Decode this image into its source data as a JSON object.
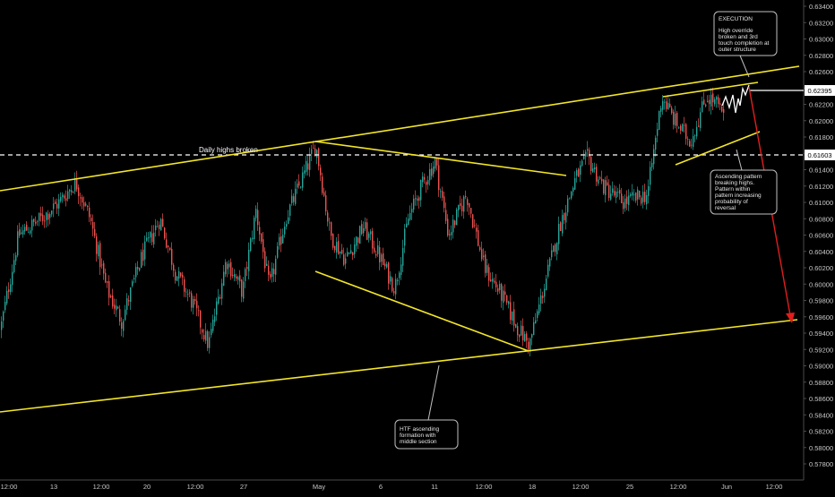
{
  "chart_data": {
    "type": "candlestick",
    "title": "",
    "xlabel": "",
    "ylabel": "",
    "ylim": [
      0.577,
      0.635
    ],
    "y_ticks": [
      "0.63400",
      "0.63200",
      "0.63000",
      "0.62800",
      "0.62600",
      "0.62400",
      "0.62200",
      "0.62000",
      "0.61800",
      "0.61600",
      "0.61400",
      "0.61200",
      "0.61000",
      "0.60800",
      "0.60600",
      "0.60400",
      "0.60200",
      "0.60000",
      "0.59800",
      "0.59600",
      "0.59400",
      "0.59200",
      "0.59000",
      "0.58800",
      "0.58600",
      "0.58400",
      "0.58200",
      "0.58000",
      "0.57800"
    ],
    "x_ticks": [
      "12:00",
      "13",
      "12:00",
      "20",
      "12:00",
      "27",
      "May",
      "6",
      "11",
      "12:00",
      "18",
      "12:00",
      "25",
      "12:00",
      "Jun",
      "12:00"
    ],
    "price_labels": {
      "upper": "0.62395",
      "lower": "0.61603"
    },
    "series_points": [
      [
        0,
        0.5945
      ],
      [
        20,
        0.606
      ],
      [
        45,
        0.608
      ],
      [
        65,
        0.61
      ],
      [
        84,
        0.6125
      ],
      [
        100,
        0.608
      ],
      [
        118,
        0.5995
      ],
      [
        135,
        0.5955
      ],
      [
        158,
        0.6035
      ],
      [
        178,
        0.608
      ],
      [
        195,
        0.6015
      ],
      [
        215,
        0.5975
      ],
      [
        232,
        0.5925
      ],
      [
        252,
        0.603
      ],
      [
        270,
        0.599
      ],
      [
        285,
        0.609
      ],
      [
        300,
        0.5995
      ],
      [
        318,
        0.608
      ],
      [
        335,
        0.6125
      ],
      [
        352,
        0.617
      ],
      [
        368,
        0.606
      ],
      [
        385,
        0.603
      ],
      [
        405,
        0.607
      ],
      [
        420,
        0.604
      ],
      [
        440,
        0.5995
      ],
      [
        455,
        0.608
      ],
      [
        470,
        0.612
      ],
      [
        485,
        0.615
      ],
      [
        500,
        0.606
      ],
      [
        520,
        0.611
      ],
      [
        540,
        0.602
      ],
      [
        560,
        0.5985
      ],
      [
        575,
        0.595
      ],
      [
        590,
        0.5925
      ],
      [
        605,
        0.599
      ],
      [
        625,
        0.6075
      ],
      [
        642,
        0.613
      ],
      [
        655,
        0.6155
      ],
      [
        672,
        0.612
      ],
      [
        695,
        0.61
      ],
      [
        722,
        0.611
      ],
      [
        738,
        0.623
      ],
      [
        752,
        0.62
      ],
      [
        770,
        0.6175
      ],
      [
        788,
        0.623
      ],
      [
        800,
        0.622
      ],
      [
        808,
        0.62
      ]
    ],
    "projection": "0.62100 → 0.62395",
    "target": "0.59600",
    "annotations": {
      "daily_highs": "Daily highs broken",
      "execution_title": "EXECUTION",
      "execution_body": [
        "High override",
        "broken and 3rd",
        "touch completion at",
        "outer structure"
      ],
      "ascending_body": [
        "Ascending pattern",
        "breaking highs.",
        "Pattern within",
        "pattern increasing",
        "probability of",
        "reversal"
      ],
      "htf_body": [
        "HTF ascending",
        "formation with",
        "middle section"
      ]
    },
    "colors": {
      "up": "#26a69a",
      "down": "#ef5350",
      "trendline": "#f2e529",
      "arrow": "#e01e1e",
      "background": "#000000"
    },
    "grid": false,
    "legend": "none"
  }
}
